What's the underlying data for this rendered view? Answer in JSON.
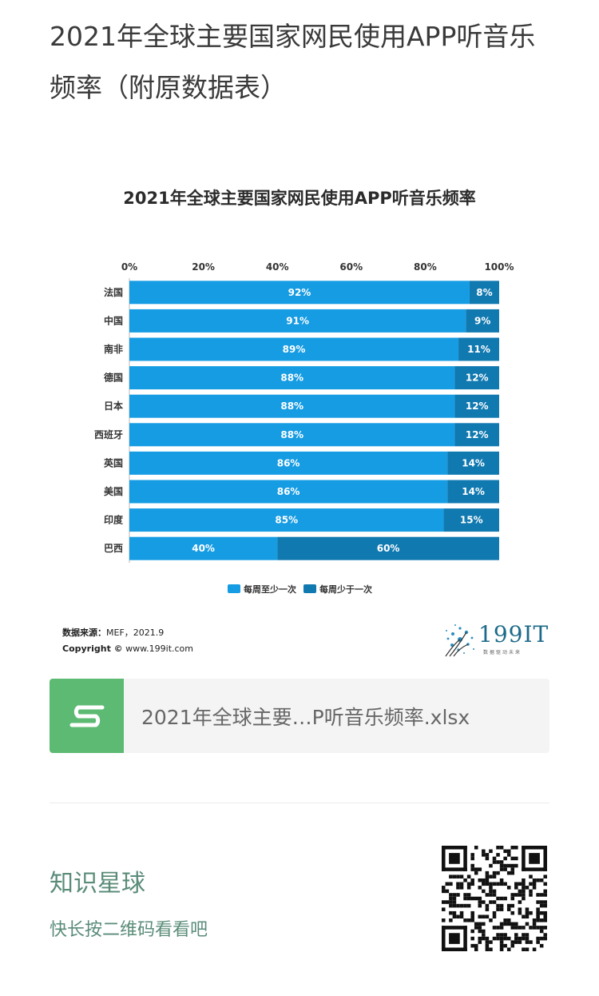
{
  "post": {
    "title": "2021年全球主要国家网民使用APP听音乐频率（附原数据表）"
  },
  "chart_data": {
    "type": "bar",
    "orientation": "horizontal",
    "stacked": true,
    "title": "2021年全球主要国家网民使用APP听音乐频率",
    "categories": [
      "法国",
      "中国",
      "南非",
      "德国",
      "日本",
      "西班牙",
      "英国",
      "美国",
      "印度",
      "巴西"
    ],
    "series": [
      {
        "name": "每周至少一次",
        "values": [
          92,
          91,
          89,
          88,
          88,
          88,
          86,
          86,
          85,
          40
        ],
        "color": "#169ce3"
      },
      {
        "name": "每周少于一次",
        "values": [
          8,
          9,
          11,
          12,
          12,
          12,
          14,
          14,
          15,
          60
        ],
        "color": "#1079b0"
      }
    ],
    "xlim": [
      0,
      100
    ],
    "x_ticks": [
      "0%",
      "20%",
      "40%",
      "60%",
      "80%",
      "100%"
    ],
    "legend_position": "bottom",
    "grid": false
  },
  "source": {
    "label": "数据来源：",
    "value": "MEF，2021.9",
    "copyright_label": "Copyright ©",
    "site": "www.199it.com"
  },
  "logo": {
    "name": "199IT",
    "tagline": "数据驱动未来"
  },
  "file": {
    "name": "2021年全球主要…P听音乐频率.xlsx",
    "icon": "spreadsheet-s-icon"
  },
  "planet": {
    "title": "知识星球",
    "subtitle": "快长按二维码看看吧",
    "qr_icon": "qr-code-icon"
  }
}
